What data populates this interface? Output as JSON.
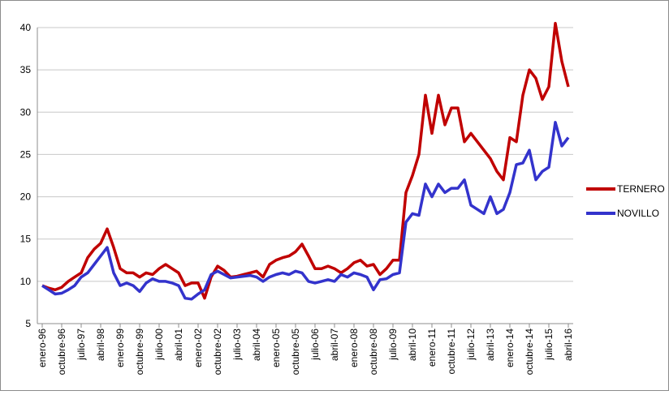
{
  "chart_data": {
    "type": "line",
    "categories": [
      "enero-96",
      null,
      null,
      "octubre-96",
      null,
      null,
      "julio-97",
      null,
      null,
      "abril-98",
      null,
      null,
      "enero-99",
      null,
      null,
      "octubre-99",
      null,
      null,
      "julio-00",
      null,
      null,
      "abril-01",
      null,
      null,
      "enero-02",
      null,
      null,
      "octubre-02",
      null,
      null,
      "julio-03",
      null,
      null,
      "abril-04",
      null,
      null,
      "enero-05",
      null,
      null,
      "octubre-05",
      null,
      null,
      "julio-06",
      null,
      null,
      "abril-07",
      null,
      null,
      "enero-08",
      null,
      null,
      "octubre-08",
      null,
      null,
      "julio-09",
      null,
      null,
      "abril-10",
      null,
      null,
      "enero-11",
      null,
      null,
      "octubre-11",
      null,
      null,
      "julio-12",
      null,
      null,
      "abril-13",
      null,
      null,
      "enero-14",
      null,
      null,
      "octubre-14",
      null,
      null,
      "julio-15",
      null,
      null,
      "abril-16"
    ],
    "series": [
      {
        "name": "TERNERO",
        "color": "#c00000",
        "values": [
          9.5,
          9.2,
          9.0,
          9.3,
          10.0,
          10.5,
          11.0,
          12.8,
          13.8,
          14.5,
          16.2,
          14.0,
          11.5,
          11.0,
          11.0,
          10.5,
          11.0,
          10.8,
          11.5,
          12.0,
          11.5,
          11.0,
          9.5,
          9.8,
          9.8,
          8.0,
          10.5,
          11.8,
          11.3,
          10.5,
          10.6,
          10.8,
          11.0,
          11.2,
          10.5,
          12.0,
          12.5,
          12.8,
          13.0,
          13.5,
          14.4,
          13.0,
          11.5,
          11.5,
          11.8,
          11.5,
          11.0,
          11.5,
          12.2,
          12.5,
          11.8,
          12.0,
          10.8,
          11.5,
          12.5,
          12.5,
          20.5,
          22.5,
          25.0,
          32.0,
          27.5,
          32.0,
          28.5,
          30.5,
          30.5,
          26.5,
          27.5,
          26.5,
          25.5,
          24.5,
          23.0,
          22.0,
          27.0,
          26.5,
          32.0,
          35.0,
          34.0,
          31.5,
          33.0,
          40.5,
          36.0,
          33.0
        ]
      },
      {
        "name": "NOVILLO",
        "color": "#3333cc",
        "values": [
          9.5,
          9.0,
          8.5,
          8.6,
          9.0,
          9.5,
          10.5,
          11.0,
          12.0,
          13.0,
          14.0,
          11.0,
          9.5,
          9.8,
          9.5,
          8.8,
          9.8,
          10.3,
          10.0,
          10.0,
          9.8,
          9.5,
          8.0,
          7.9,
          8.5,
          9.0,
          10.8,
          11.2,
          10.8,
          10.4,
          10.5,
          10.6,
          10.7,
          10.5,
          10.0,
          10.5,
          10.8,
          11.0,
          10.8,
          11.2,
          11.0,
          10.0,
          9.8,
          10.0,
          10.2,
          10.0,
          10.8,
          10.5,
          11.0,
          10.8,
          10.5,
          9.0,
          10.2,
          10.3,
          10.8,
          11.0,
          17.0,
          18.0,
          17.8,
          21.5,
          20.0,
          21.5,
          20.5,
          21.0,
          21.0,
          22.0,
          19.0,
          18.5,
          18.0,
          20.0,
          18.0,
          18.5,
          20.5,
          23.8,
          24.0,
          25.5,
          22.0,
          23.0,
          23.5,
          28.8,
          26.0,
          27.0
        ]
      }
    ],
    "ylim": [
      5,
      40
    ],
    "yticks": [
      5,
      10,
      15,
      20,
      25,
      30,
      35,
      40
    ],
    "grid": true,
    "legend": "right"
  }
}
